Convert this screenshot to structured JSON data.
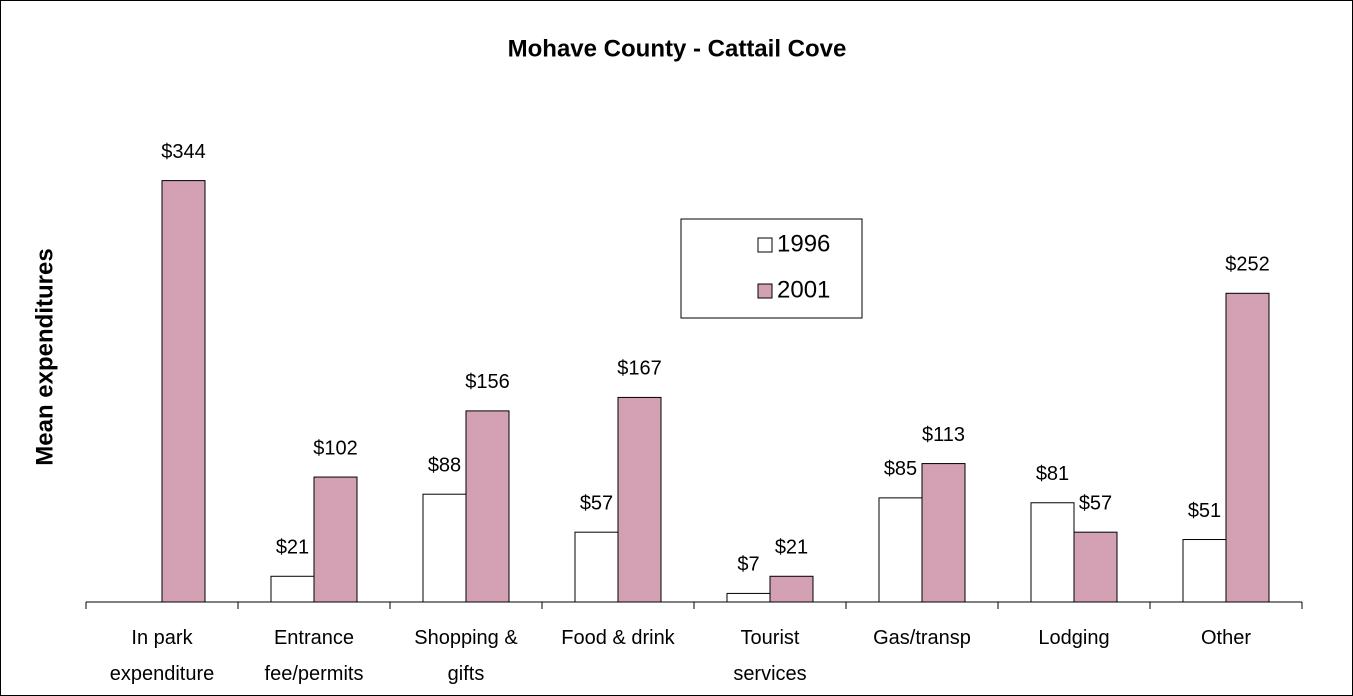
{
  "chart_data": {
    "type": "bar",
    "title": "Mohave County - Cattail Cove",
    "y_label": "Mean expenditures",
    "categories": [
      "In park expenditure",
      "Entrance fee/permits",
      "Shopping & gifts",
      "Food & drink",
      "Tourist services",
      "Gas/transp",
      "Lodging",
      "Other"
    ],
    "series": [
      {
        "name": "1996",
        "color": "#ffffff",
        "values": [
          null,
          21,
          88,
          57,
          7,
          85,
          81,
          51
        ],
        "value_labels": [
          null,
          "$21",
          "$88",
          "$57",
          "$7",
          "$85",
          "$81",
          "$51"
        ]
      },
      {
        "name": "2001",
        "color": "#d4a0b4",
        "values": [
          344,
          102,
          156,
          167,
          21,
          113,
          57,
          252
        ],
        "value_labels": [
          "$344",
          "$102",
          "$156",
          "$167",
          "$21",
          "$113",
          "$57",
          "$252"
        ]
      }
    ],
    "ylim": [
      0,
      400
    ],
    "legend": "top-center"
  }
}
